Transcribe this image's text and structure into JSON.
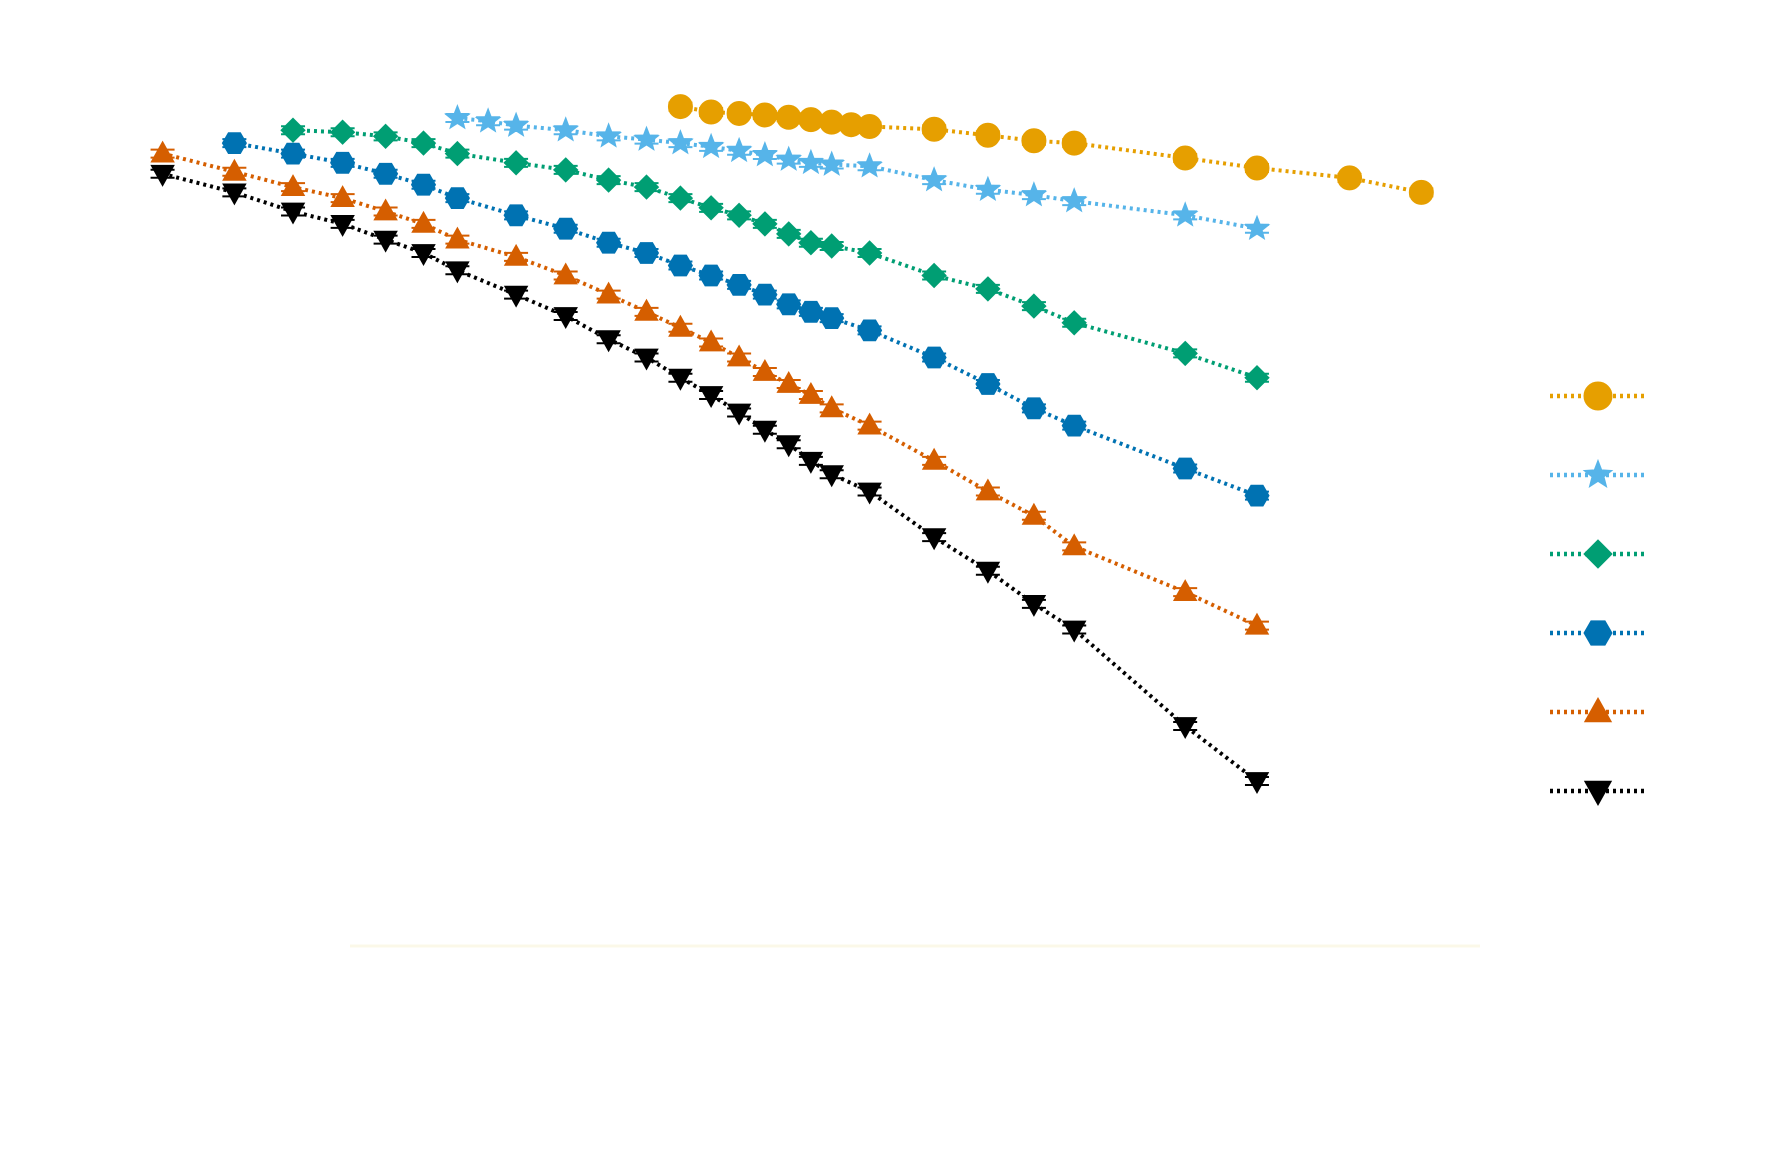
{
  "chart_data": {
    "type": "line",
    "title": "",
    "xlabel": "",
    "ylabel": "",
    "grid": false,
    "legend_position": "center-right",
    "x_scale": "log",
    "y_scale": "log",
    "xlim": [
      1.5,
      120
    ],
    "ylim": [
      1e-06,
      2
    ],
    "series": [
      {
        "name": "",
        "color": "#E69F00",
        "marker": "circle",
        "x": [
          10,
          11,
          12,
          13,
          14,
          15,
          16,
          17,
          18,
          22,
          26,
          30,
          34,
          48,
          60,
          80,
          100
        ],
        "y": [
          0.92,
          0.84,
          0.82,
          0.8,
          0.77,
          0.74,
          0.71,
          0.68,
          0.66,
          0.63,
          0.57,
          0.52,
          0.5,
          0.39,
          0.33,
          0.28,
          0.22
        ]
      },
      {
        "name": "",
        "color": "#56B4E9",
        "marker": "star",
        "x": [
          5,
          5.5,
          6,
          7,
          8,
          9,
          10,
          11,
          12,
          13,
          14,
          15,
          16,
          18,
          22,
          26,
          30,
          34,
          48,
          60
        ],
        "y": [
          0.76,
          0.72,
          0.67,
          0.62,
          0.56,
          0.53,
          0.5,
          0.47,
          0.44,
          0.41,
          0.38,
          0.36,
          0.35,
          0.34,
          0.27,
          0.23,
          0.21,
          0.19,
          0.15,
          0.12
        ]
      },
      {
        "name": "",
        "color": "#009E73",
        "marker": "diamond",
        "x": [
          3,
          3.5,
          4,
          4.5,
          5,
          6,
          7,
          8,
          9,
          10,
          11,
          12,
          13,
          14,
          15,
          16,
          18,
          22,
          26,
          30,
          34,
          48,
          60
        ],
        "y": [
          0.62,
          0.6,
          0.56,
          0.5,
          0.42,
          0.36,
          0.32,
          0.27,
          0.24,
          0.2,
          0.17,
          0.15,
          0.13,
          0.11,
          0.095,
          0.09,
          0.08,
          0.055,
          0.044,
          0.033,
          0.025,
          0.015,
          0.01
        ]
      },
      {
        "name": "",
        "color": "#0072B2",
        "marker": "hexagon",
        "x": [
          2.5,
          3,
          3.5,
          4,
          4.5,
          5,
          6,
          7,
          8,
          9,
          10,
          11,
          12,
          13,
          14,
          15,
          16,
          18,
          22,
          26,
          30,
          34,
          48,
          60
        ],
        "y": [
          0.5,
          0.42,
          0.36,
          0.3,
          0.25,
          0.2,
          0.15,
          0.12,
          0.095,
          0.08,
          0.065,
          0.055,
          0.047,
          0.04,
          0.034,
          0.03,
          0.027,
          0.022,
          0.014,
          0.009,
          0.006,
          0.0045,
          0.0022,
          0.0014
        ]
      },
      {
        "name": "",
        "color": "#D55E00",
        "marker": "triangle-up",
        "x": [
          2,
          2.5,
          3,
          3.5,
          4,
          4.5,
          5,
          6,
          7,
          8,
          9,
          10,
          11,
          12,
          13,
          14,
          15,
          16,
          18,
          22,
          26,
          30,
          34,
          48,
          60
        ],
        "y": [
          0.42,
          0.31,
          0.24,
          0.2,
          0.16,
          0.13,
          0.1,
          0.075,
          0.055,
          0.04,
          0.03,
          0.023,
          0.018,
          0.014,
          0.011,
          0.009,
          0.0075,
          0.006,
          0.0045,
          0.0025,
          0.0015,
          0.001,
          0.0006,
          0.00028,
          0.00016
        ]
      },
      {
        "name": "",
        "color": "#000000",
        "marker": "triangle-down",
        "x": [
          2,
          2.5,
          3,
          3.5,
          4,
          4.5,
          5,
          6,
          7,
          8,
          9,
          10,
          11,
          12,
          13,
          14,
          15,
          16,
          18,
          22,
          26,
          30,
          34,
          48,
          60
        ],
        "y": [
          0.3,
          0.22,
          0.16,
          0.13,
          0.1,
          0.08,
          0.06,
          0.04,
          0.028,
          0.019,
          0.014,
          0.01,
          0.0075,
          0.0056,
          0.0042,
          0.0033,
          0.0025,
          0.002,
          0.0015,
          0.0007,
          0.0004,
          0.00023,
          0.00015,
          3e-05,
          1.2e-05
        ]
      }
    ]
  }
}
